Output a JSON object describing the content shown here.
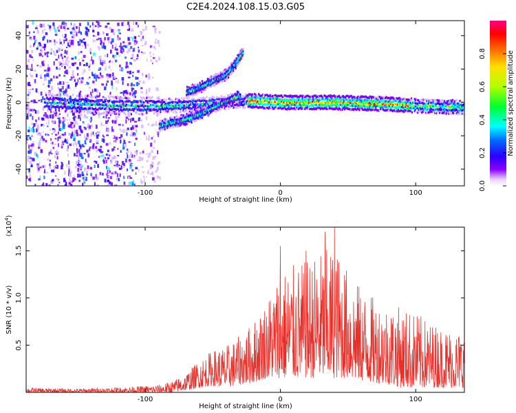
{
  "title": "C2E4.2024.108.15.03.G05",
  "chart_data": [
    {
      "type": "heatmap",
      "name": "spectrogram",
      "xlabel": "Height of straight line (km)",
      "ylabel": "Frequency (Hz)",
      "xlim": [
        -188,
        136
      ],
      "ylim": [
        -50,
        49
      ],
      "xticks": [
        -100,
        0,
        100
      ],
      "yticks": [
        -40,
        -20,
        0,
        20,
        40
      ],
      "colorbar": {
        "label": "Normalized spectral amplitude",
        "range": [
          0,
          1
        ],
        "ticks": [
          "0.0",
          "0.2",
          "0.4",
          "0.6",
          "0.8"
        ],
        "colormap": [
          "#ffffff",
          "#d9b3ff",
          "#7b00ff",
          "#2a00ff",
          "#0060ff",
          "#00ffff",
          "#00ff40",
          "#b0ff00",
          "#ffff00",
          "#ff8000",
          "#ff0000",
          "#ff0080"
        ]
      },
      "features": [
        {
          "description_free_series": "main carrier",
          "x": [
            -175,
            -150,
            -120,
            -100,
            -80,
            -60,
            -40,
            -20,
            0,
            40,
            80,
            100,
            136
          ],
          "y": [
            0,
            -1,
            -2,
            -2,
            -2,
            -1,
            0,
            1,
            0,
            0,
            -1,
            -2,
            -3
          ]
        },
        {
          "description_free_series": "upper branch",
          "x": [
            -70,
            -60,
            -50,
            -40,
            -33,
            -28
          ],
          "y": [
            6,
            9,
            13,
            17,
            24,
            30
          ]
        },
        {
          "description_free_series": "lower branch",
          "x": [
            -90,
            -80,
            -70,
            -60,
            -50,
            -40,
            -30
          ],
          "y": [
            -14,
            -12,
            -10,
            -7,
            -3,
            1,
            4
          ]
        }
      ],
      "noise_region_x": [
        -188,
        -90
      ]
    },
    {
      "type": "line",
      "name": "snr",
      "xlabel": "Height of straight line (km)",
      "ylabel": "SNR (10 * v/v)",
      "ymultiplier": "(x10",
      "ymultiplier_exp": "4",
      "ymultiplier_close": ")",
      "xlim": [
        -188,
        136
      ],
      "ylim": [
        0,
        1.75
      ],
      "xticks": [
        -100,
        0,
        100
      ],
      "yticks": [
        "0.5",
        "1.0",
        "1.5"
      ],
      "ytick_values": [
        0.5,
        1.0,
        1.5
      ],
      "color": "#e8302a",
      "envelope": {
        "x": [
          -188,
          -150,
          -110,
          -90,
          -80,
          -70,
          -60,
          -50,
          -40,
          -30,
          -20,
          -10,
          0,
          10,
          20,
          30,
          40,
          50,
          60,
          70,
          80,
          90,
          100,
          110,
          120,
          136
        ],
        "low": [
          0.0,
          0.0,
          0.0,
          0.0,
          0.0,
          0.02,
          0.05,
          0.07,
          0.05,
          0.08,
          0.1,
          0.15,
          0.15,
          0.15,
          0.15,
          0.15,
          0.15,
          0.15,
          0.12,
          0.1,
          0.08,
          0.05,
          0.05,
          0.05,
          0.05,
          0.05
        ],
        "high": [
          0.05,
          0.04,
          0.06,
          0.08,
          0.12,
          0.2,
          0.35,
          0.45,
          0.5,
          0.6,
          0.75,
          1.0,
          1.3,
          1.35,
          1.4,
          1.5,
          1.55,
          1.3,
          1.1,
          1.0,
          0.95,
          0.9,
          0.85,
          0.75,
          0.7,
          0.65
        ]
      },
      "peaks": [
        {
          "x": 40,
          "y": 1.75
        },
        {
          "x": 33,
          "y": 1.7
        },
        {
          "x": 0,
          "y": 1.55
        },
        {
          "x": 19,
          "y": 1.5
        }
      ]
    }
  ]
}
